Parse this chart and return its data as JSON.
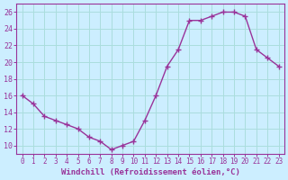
{
  "hours": [
    0,
    1,
    2,
    3,
    4,
    5,
    6,
    7,
    8,
    9,
    10,
    11,
    12,
    13,
    14,
    15,
    16,
    17,
    18,
    19,
    20,
    21,
    22,
    23
  ],
  "temps": [
    16,
    15,
    13.5,
    13,
    12.5,
    12,
    11,
    10.5,
    9.5,
    10,
    10.5,
    13,
    16,
    19.5,
    21.5,
    25,
    25,
    25.5,
    26,
    26,
    25.5,
    21.5,
    20.5,
    19.5
  ],
  "line_color": "#993399",
  "marker_color": "#993399",
  "bg_color": "#cceeff",
  "grid_color": "#aadddd",
  "xlabel": "Windchill (Refroidissement éolien,°C)",
  "yticks": [
    10,
    12,
    14,
    16,
    18,
    20,
    22,
    24,
    26
  ],
  "ylim": [
    9.0,
    27.0
  ],
  "xlim": [
    -0.5,
    23.5
  ],
  "tick_color": "#993399",
  "xlabel_color": "#993399",
  "xlabel_fontsize": 6.5,
  "tick_fontsize": 5.5,
  "linewidth": 1.0,
  "markersize": 2.5
}
